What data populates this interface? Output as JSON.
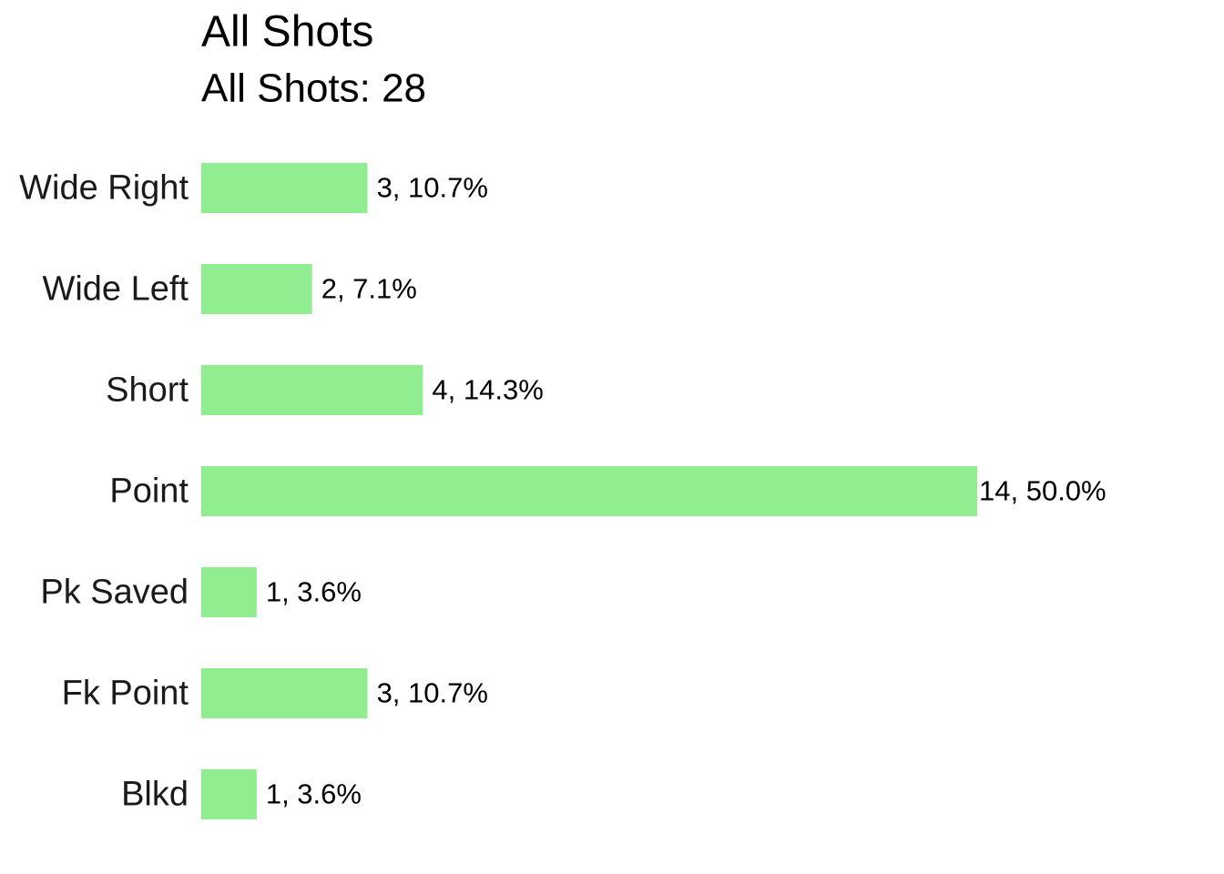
{
  "chart_data": {
    "type": "bar",
    "horizontal": true,
    "title": "All Shots",
    "subtitle": "All Shots: 28",
    "categories": [
      "Wide Right",
      "Wide Left",
      "Short",
      "Point",
      "Pk Saved",
      "Fk Point",
      "Blkd"
    ],
    "values": [
      3,
      2,
      4,
      14,
      1,
      3,
      1
    ],
    "value_labels": [
      "3, 10.7%",
      "2, 7.1%",
      "4, 14.3%",
      "14, 50.0%",
      "1, 3.6%",
      "3, 10.7%",
      "1, 3.6%"
    ],
    "color": "#90ee90"
  }
}
